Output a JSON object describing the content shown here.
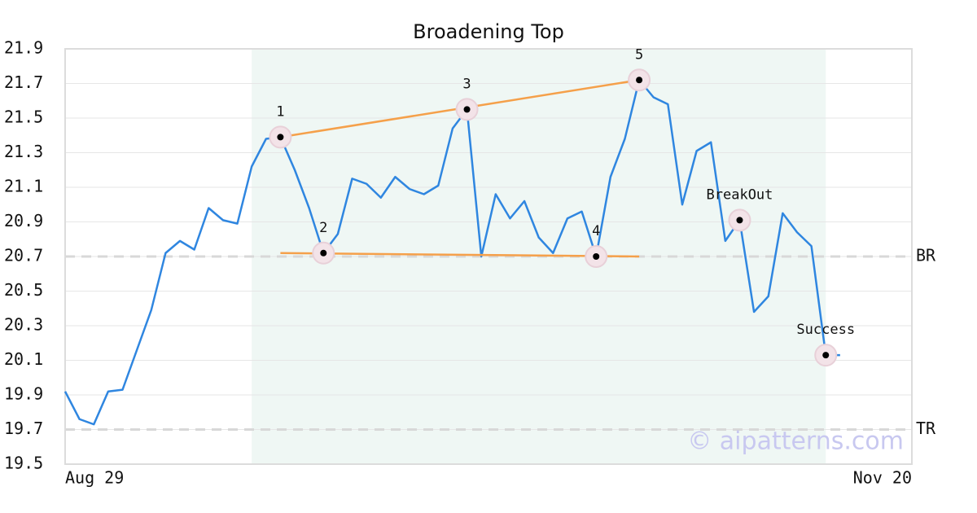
{
  "chart_data": {
    "type": "line",
    "title": "Broadening Top",
    "values": [
      19.92,
      19.76,
      19.73,
      19.92,
      19.93,
      20.16,
      20.39,
      20.72,
      20.79,
      20.74,
      20.98,
      20.91,
      20.89,
      21.22,
      21.38,
      21.39,
      21.2,
      20.98,
      20.72,
      20.83,
      21.15,
      21.12,
      21.04,
      21.16,
      21.09,
      21.06,
      21.11,
      21.44,
      21.55,
      20.7,
      21.06,
      20.92,
      21.02,
      20.81,
      20.72,
      20.92,
      20.96,
      20.7,
      21.16,
      21.38,
      21.72,
      21.62,
      21.58,
      21.0,
      21.31,
      21.36,
      20.79,
      20.91,
      20.38,
      20.47,
      20.95,
      20.84,
      20.76,
      20.13,
      20.13
    ],
    "color": "#2f86e0",
    "xlim": [
      0,
      59
    ],
    "xticks": [
      {
        "value": 0,
        "label": "Aug 29"
      },
      {
        "value": 59,
        "label": "Nov 20"
      }
    ],
    "ylim": [
      19.5,
      21.9
    ],
    "yticks": [
      19.5,
      19.7,
      19.9,
      20.1,
      20.3,
      20.5,
      20.7,
      20.9,
      21.1,
      21.3,
      21.5,
      21.7,
      21.9
    ],
    "grid": true,
    "shade": [
      13,
      53
    ],
    "levels": [
      {
        "value": 20.7,
        "label": "BR"
      },
      {
        "value": 19.7,
        "label": "TR"
      }
    ],
    "trendlines": [
      {
        "x": [
          15,
          40
        ],
        "y": [
          21.39,
          21.72
        ],
        "color": "#f5a04a"
      },
      {
        "x": [
          15,
          40
        ],
        "y": [
          20.72,
          20.7
        ],
        "color": "#f5a04a"
      }
    ],
    "points": [
      {
        "label": "1",
        "x": 15
      },
      {
        "label": "2",
        "x": 18
      },
      {
        "label": "3",
        "x": 28
      },
      {
        "label": "4",
        "x": 37
      },
      {
        "label": "5",
        "x": 40
      },
      {
        "label": "BreakOut",
        "x": 47
      },
      {
        "label": "Success",
        "x": 53
      }
    ],
    "watermark": "© aipatterns.com"
  }
}
